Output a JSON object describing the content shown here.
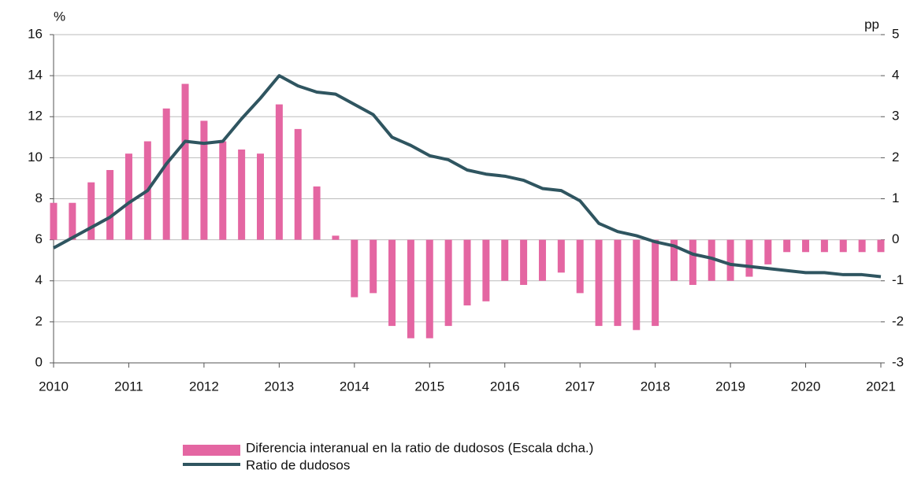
{
  "chart_data": {
    "type": "bar_line",
    "y_label": "%",
    "y2_label": "pp",
    "xlim": [
      2010,
      2021
    ],
    "xticks": [
      2010,
      2011,
      2012,
      2013,
      2014,
      2015,
      2016,
      2017,
      2018,
      2019,
      2020,
      2021
    ],
    "ylim": [
      0,
      16
    ],
    "yticks": [
      0,
      2,
      4,
      6,
      8,
      10,
      12,
      14,
      16
    ],
    "y2lim": [
      -3,
      5
    ],
    "y2ticks": [
      -3,
      -2,
      -1,
      0,
      1,
      2,
      3,
      4,
      5
    ],
    "grid": true,
    "legend": "bottom",
    "x": [
      2010,
      2010.25,
      2010.5,
      2010.75,
      2011,
      2011.25,
      2011.5,
      2011.75,
      2012,
      2012.25,
      2012.5,
      2012.75,
      2013,
      2013.25,
      2013.5,
      2013.75,
      2014,
      2014.25,
      2014.5,
      2014.75,
      2015,
      2015.25,
      2015.5,
      2015.75,
      2016,
      2016.25,
      2016.5,
      2016.75,
      2017,
      2017.25,
      2017.5,
      2017.75,
      2018,
      2018.25,
      2018.5,
      2018.75,
      2019,
      2019.25,
      2019.5,
      2019.75,
      2020,
      2020.25,
      2020.5,
      2020.75,
      2021
    ],
    "series": [
      {
        "name": "Diferencia interanual en la ratio de dudosos (Escala dcha.)",
        "kind": "bar",
        "axis": "y2",
        "color": "#e466a2",
        "values": [
          0.9,
          0.9,
          1.4,
          1.7,
          2.1,
          2.4,
          3.2,
          3.8,
          2.9,
          2.4,
          2.2,
          2.1,
          3.3,
          2.7,
          1.3,
          0.1,
          -1.4,
          -1.3,
          -2.1,
          -2.4,
          -2.4,
          -2.1,
          -1.6,
          -1.5,
          -1.0,
          -1.1,
          -1.0,
          -0.8,
          -1.3,
          -2.1,
          -2.1,
          -2.2,
          -2.1,
          -1.0,
          -1.1,
          -1.0,
          -1.0,
          -0.9,
          -0.6,
          -0.3,
          -0.3,
          -0.3,
          -0.3,
          -0.3,
          -0.3
        ]
      },
      {
        "name": "Ratio de dudosos",
        "kind": "line",
        "axis": "y",
        "color": "#2f5560",
        "values": [
          5.6,
          6.1,
          6.6,
          7.1,
          7.8,
          8.4,
          9.7,
          10.8,
          10.7,
          10.8,
          11.9,
          12.9,
          14.0,
          13.5,
          13.2,
          13.1,
          12.6,
          12.1,
          11.0,
          10.6,
          10.1,
          9.9,
          9.4,
          9.2,
          9.1,
          8.9,
          8.5,
          8.4,
          7.9,
          6.8,
          6.4,
          6.2,
          5.9,
          5.7,
          5.3,
          5.1,
          4.8,
          4.7,
          4.6,
          4.5,
          4.4,
          4.4,
          4.3,
          4.3,
          4.2
        ]
      }
    ]
  }
}
